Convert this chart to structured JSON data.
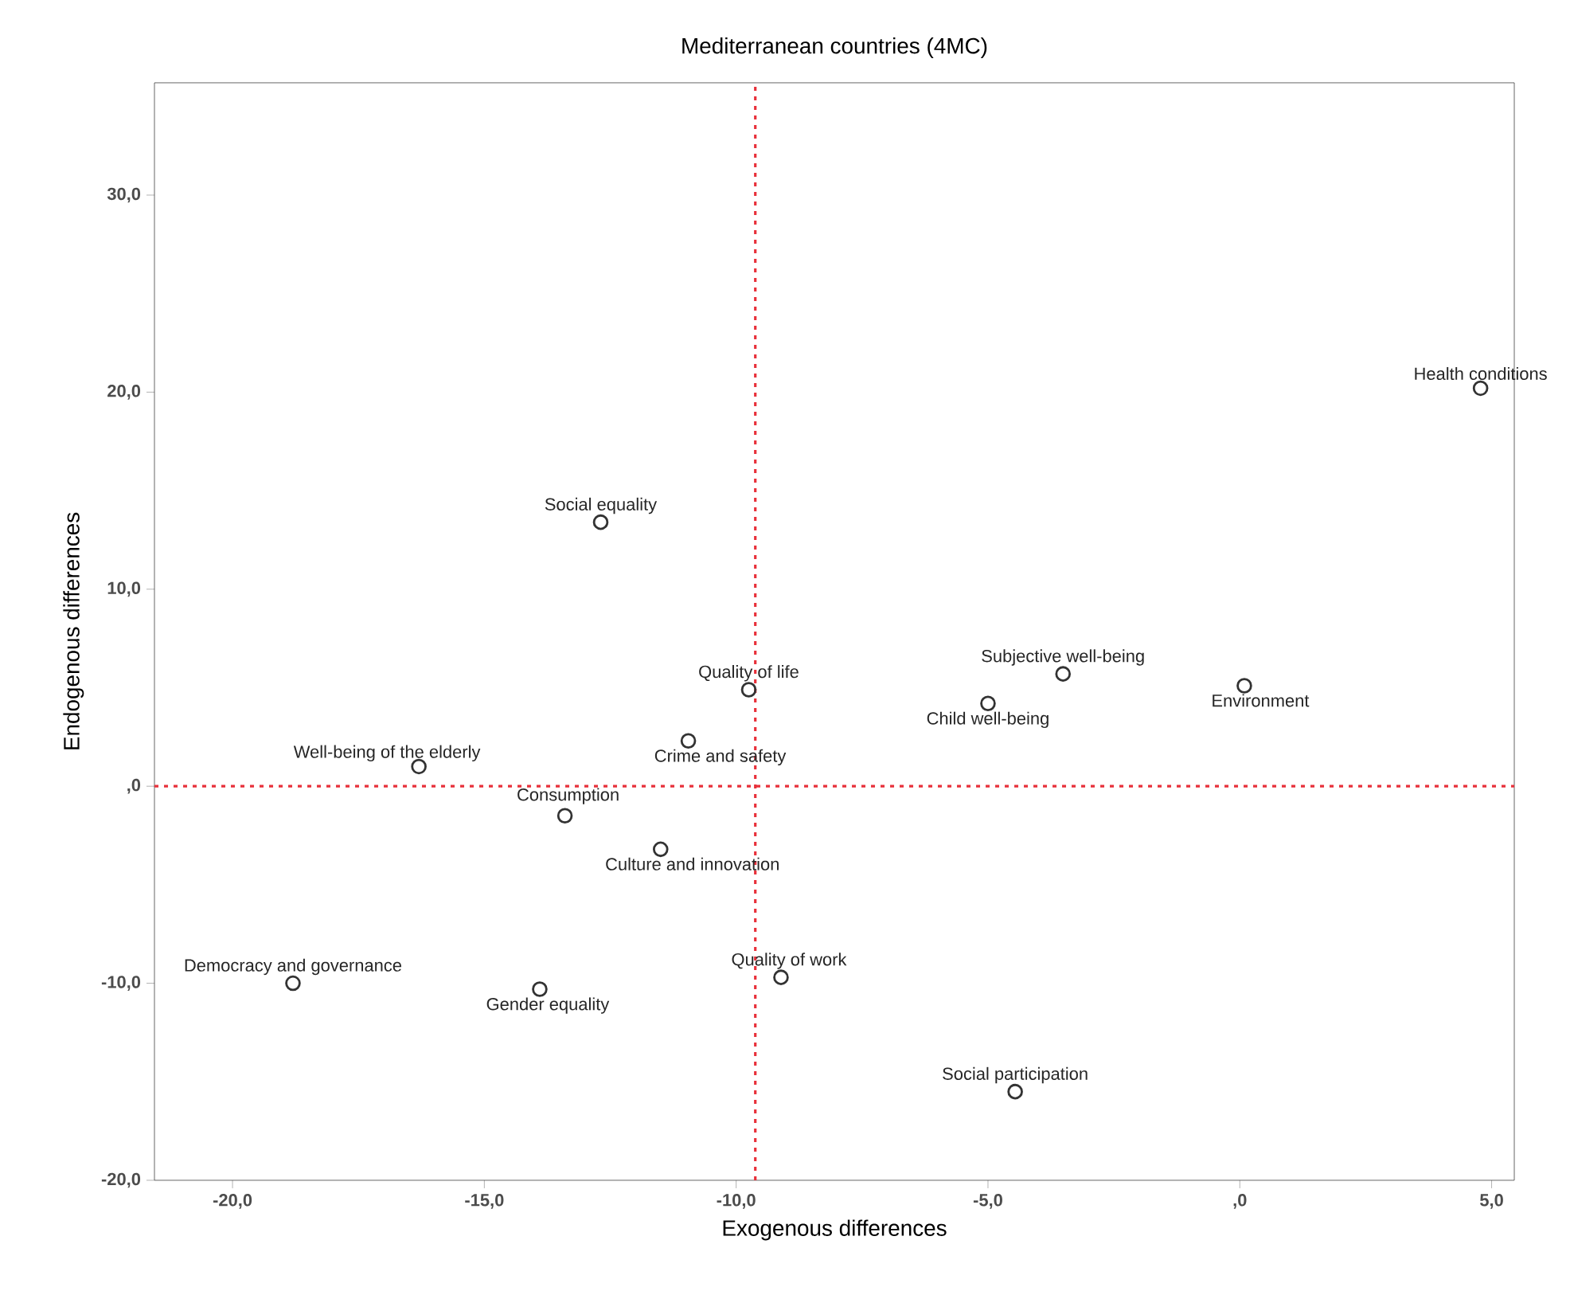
{
  "chart_data": {
    "type": "scatter",
    "title": "Mediterranean countries (4MC)",
    "xlabel": "Exogenous differences",
    "ylabel": "Endogenous differences",
    "xlim": [
      -21.55,
      5.45
    ],
    "ylim": [
      -20,
      35.7
    ],
    "xticks": [
      {
        "value": -20,
        "label": "-20,0"
      },
      {
        "value": -15,
        "label": "-15,0"
      },
      {
        "value": -10,
        "label": "-10,0"
      },
      {
        "value": -5,
        "label": "-5,0"
      },
      {
        "value": 0,
        "label": ",0"
      },
      {
        "value": 5,
        "label": "5,0"
      }
    ],
    "yticks": [
      {
        "value": -20,
        "label": "-20,0"
      },
      {
        "value": -10,
        "label": "-10,0"
      },
      {
        "value": 0,
        "label": ",0"
      },
      {
        "value": 10,
        "label": "10,0"
      },
      {
        "value": 20,
        "label": "20,0"
      },
      {
        "value": 30,
        "label": "30,0"
      }
    ],
    "marker": "circle",
    "grid": false,
    "series": [
      {
        "color": "#333333",
        "x": [
          4.78,
          -12.69,
          -9.75,
          -3.51,
          -5.0,
          0.09,
          -10.95,
          -16.3,
          -13.4,
          -11.5,
          -18.8,
          -13.9,
          -9.11,
          -4.46
        ],
        "values": [
          20.2,
          13.4,
          4.9,
          5.7,
          4.2,
          5.1,
          2.3,
          1.0,
          -1.5,
          -3.2,
          -10.0,
          -10.3,
          -9.7,
          -15.5
        ]
      }
    ],
    "annotations": [
      {
        "text": "Health conditions",
        "x": 4.78,
        "y": 20.2
      },
      {
        "text": "Social equality",
        "x": -12.69,
        "y": 13.4
      },
      {
        "text": "Quality of life",
        "x": -9.75,
        "y": 4.9
      },
      {
        "text": "Subjective well-being",
        "x": -3.51,
        "y": 5.7
      },
      {
        "text": "Child well-being",
        "x": -5.0,
        "y": 4.2
      },
      {
        "text": "Environment",
        "x": 0.09,
        "y": 5.1
      },
      {
        "text": "Crime and safety",
        "x": -10.95,
        "y": 2.3
      },
      {
        "text": "Well-being of the elderly",
        "x": -16.3,
        "y": 1.0
      },
      {
        "text": "Consumption",
        "x": -13.4,
        "y": -1.5
      },
      {
        "text": "Culture and innovation",
        "x": -11.5,
        "y": -3.2
      },
      {
        "text": "Democracy and governance",
        "x": -18.8,
        "y": -10.0
      },
      {
        "text": "Gender equality",
        "x": -13.9,
        "y": -10.3
      },
      {
        "text": "Quality of work",
        "x": -9.11,
        "y": -9.7
      },
      {
        "text": "Social participation",
        "x": -4.46,
        "y": -15.5
      }
    ],
    "ref_lines": [
      {
        "axis": "x",
        "value": -9.62,
        "color": "#e8303a",
        "line_style": "dotted"
      },
      {
        "axis": "y",
        "value": 0,
        "color": "#e8303a",
        "line_style": "dotted"
      }
    ]
  }
}
